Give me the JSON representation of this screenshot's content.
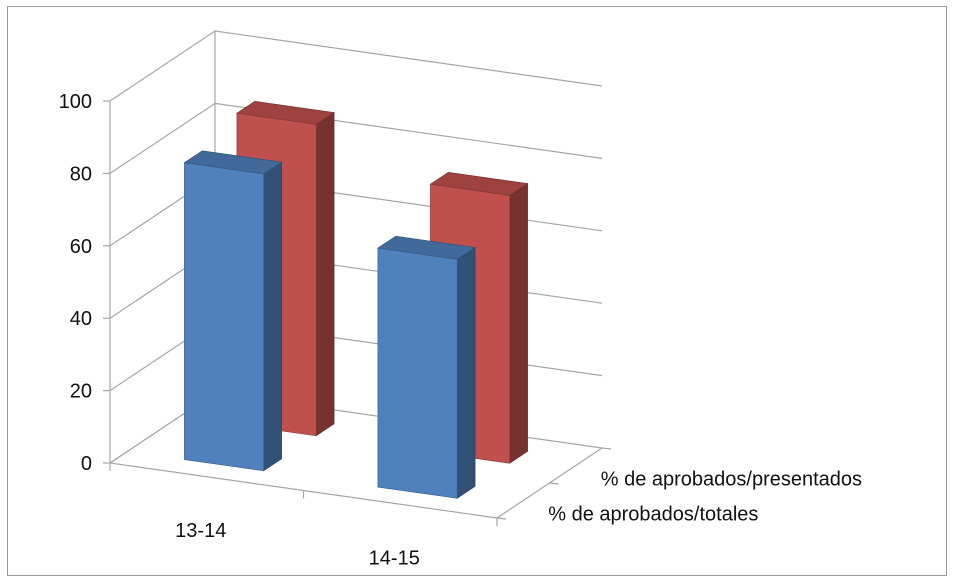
{
  "chart_data": {
    "type": "bar",
    "title": "",
    "xlabel": "",
    "ylabel": "",
    "categories": [
      "13-14",
      "14-15"
    ],
    "depth_categories": [
      "% de aprobados/totales",
      "% de aprobados/presentados"
    ],
    "series": [
      {
        "name": "% de aprobados/totales",
        "values": [
          82,
          66
        ],
        "color": "#4f81bd"
      },
      {
        "name": "% de aprobados/presentados",
        "values": [
          86,
          74
        ],
        "color": "#c0504d"
      }
    ],
    "ylim": [
      0,
      100
    ],
    "yticks": [
      0,
      20,
      40,
      60,
      80,
      100
    ],
    "grid": true,
    "view": "3d-column"
  }
}
